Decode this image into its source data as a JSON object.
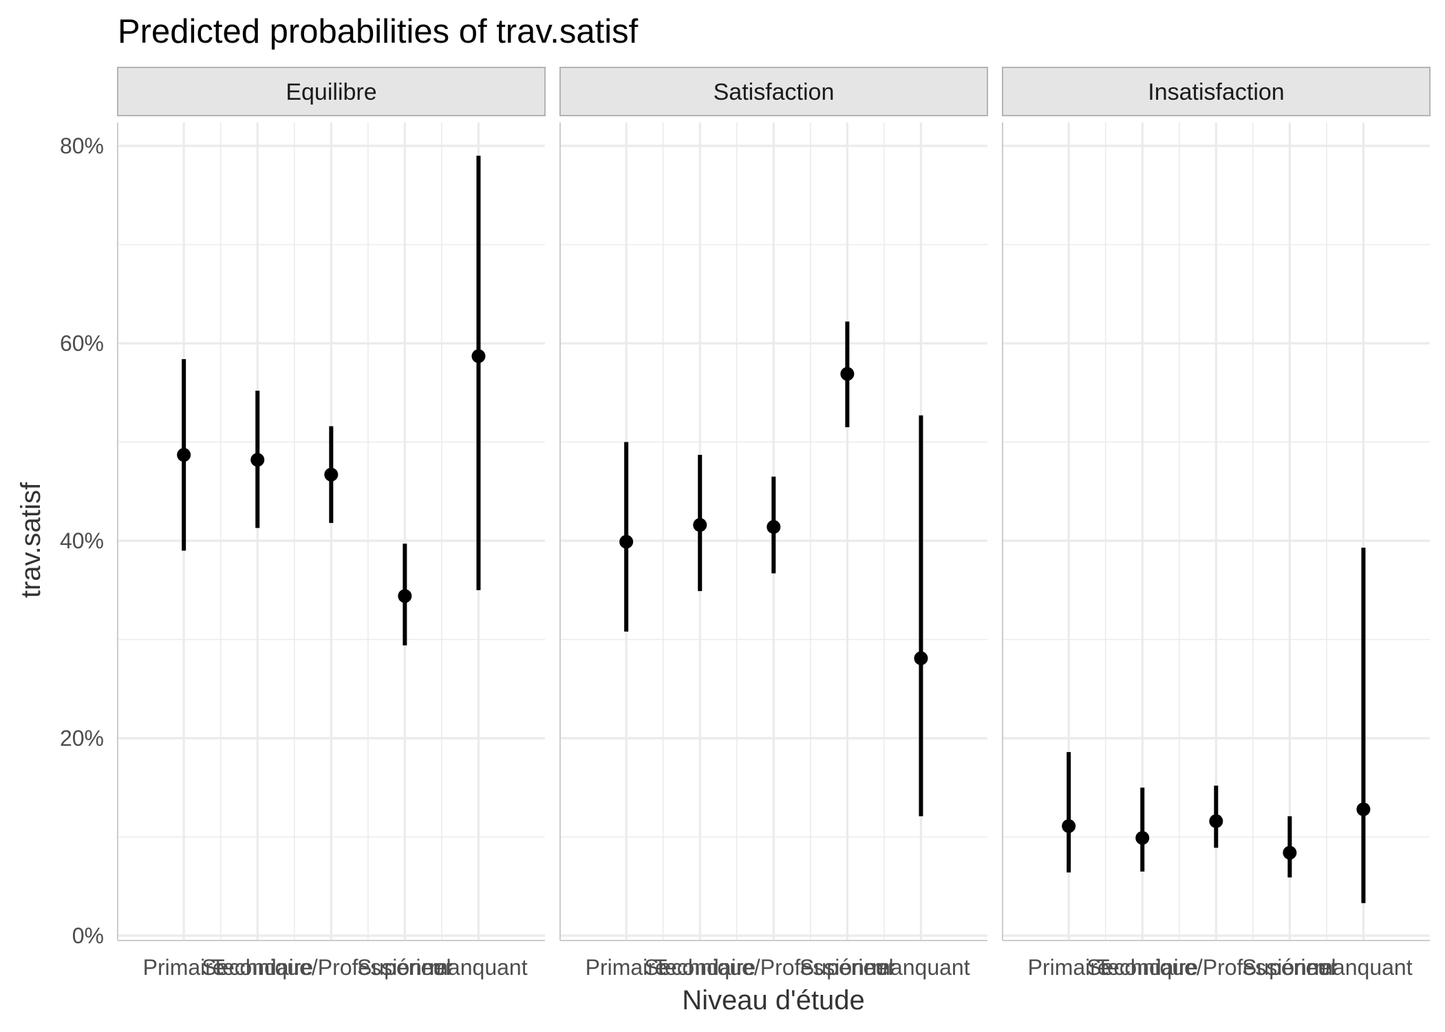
{
  "chart_data": {
    "type": "pointrange",
    "title": "Predicted probabilities of trav.satisf",
    "xlabel": "Niveau d'étude",
    "ylabel": "trav.satisf",
    "ylim": [
      0,
      0.83
    ],
    "yticks": [
      0,
      0.2,
      0.4,
      0.6,
      0.8
    ],
    "ytick_labels": [
      "0%",
      "20%",
      "40%",
      "60%",
      "80%"
    ],
    "categories": [
      "Primaire",
      "Secondaire",
      "Technique/Professionnel",
      "Supérieur",
      "manquant"
    ],
    "panels": [
      {
        "name": "Equilibre",
        "values": [
          0.487,
          0.482,
          0.467,
          0.344,
          0.587
        ],
        "lower": [
          0.39,
          0.413,
          0.418,
          0.294,
          0.35
        ],
        "upper": [
          0.584,
          0.552,
          0.516,
          0.397,
          0.79
        ]
      },
      {
        "name": "Satisfaction",
        "values": [
          0.399,
          0.416,
          0.414,
          0.569,
          0.281
        ],
        "lower": [
          0.308,
          0.349,
          0.367,
          0.515,
          0.121
        ],
        "upper": [
          0.5,
          0.487,
          0.465,
          0.622,
          0.527
        ]
      },
      {
        "name": "Insatisfaction",
        "values": [
          0.111,
          0.099,
          0.116,
          0.084,
          0.128
        ],
        "lower": [
          0.064,
          0.065,
          0.089,
          0.059,
          0.033
        ],
        "upper": [
          0.186,
          0.15,
          0.152,
          0.121,
          0.393
        ]
      }
    ]
  }
}
